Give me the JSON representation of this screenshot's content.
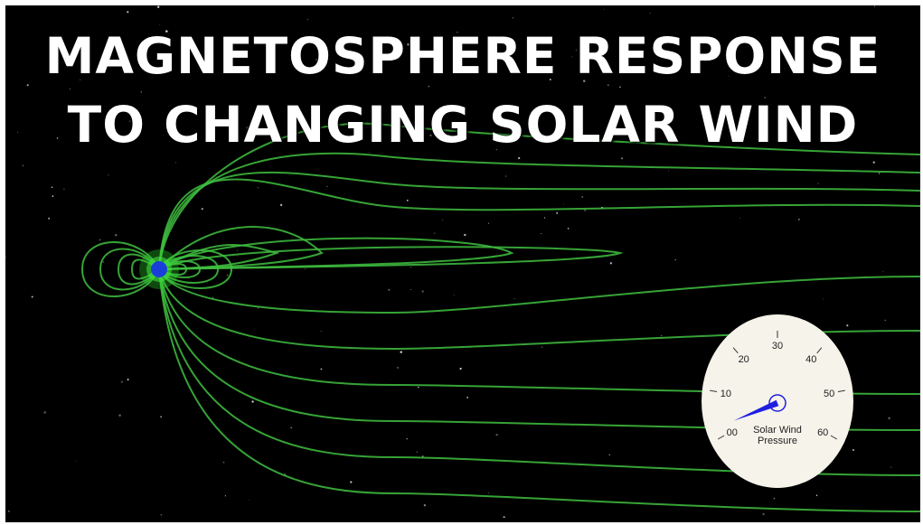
{
  "title": {
    "line1": "MAGNETOSPHERE RESPONSE",
    "line2": "TO CHANGING SOLAR WIND"
  },
  "gauge": {
    "label_line1": "Solar Wind",
    "label_line2": "Pressure",
    "ticks": [
      "00",
      "10",
      "20",
      "30",
      "40",
      "50",
      "60"
    ],
    "value": 2,
    "max": 60
  },
  "colors": {
    "background": "#000000",
    "field_lines": "#3fbf3f",
    "earth": "#1a3fd9",
    "gauge_face": "#f5f3ea",
    "needle": "#1f1fe0",
    "title": "#ffffff"
  }
}
